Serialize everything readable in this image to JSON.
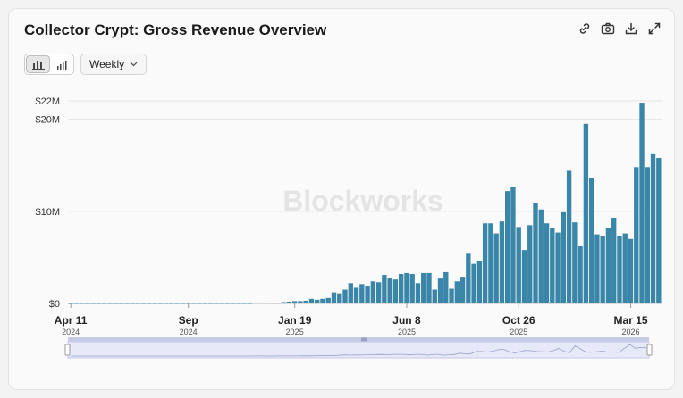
{
  "header": {
    "title": "Collector Crypt: Gross Revenue Overview"
  },
  "toolbar": {
    "icons": [
      "link-icon",
      "camera-icon",
      "download-icon",
      "expand-icon"
    ]
  },
  "controls": {
    "chart_type_buttons": [
      "bar-chart-icon",
      "bar-chart-alt-icon"
    ],
    "interval": {
      "selected": "Weekly",
      "icon": "chevron-down-icon"
    }
  },
  "watermark": "Blockworks",
  "colors": {
    "bar": "#3a86a8",
    "grid": "#e5e5e5",
    "navigator_fill": "#e6e9f8",
    "navigator_handle": "#c7cbe6"
  },
  "chart_data": {
    "type": "bar",
    "title": "Collector Crypt: Gross Revenue Overview",
    "xlabel": "",
    "ylabel": "",
    "ylim": [
      0,
      22
    ],
    "y_ticks": [
      "$0",
      "$10M",
      "$20M",
      "$22M"
    ],
    "y_tick_values": [
      0,
      10,
      20,
      22
    ],
    "x_ticks": [
      {
        "label": "Apr 11",
        "year": "2024"
      },
      {
        "label": "Sep",
        "year": "2024"
      },
      {
        "label": "Jan 19",
        "year": "2025"
      },
      {
        "label": "Jun 8",
        "year": "2025"
      },
      {
        "label": "Oct 26",
        "year": "2025"
      },
      {
        "label": "Mar 15",
        "year": "2026"
      }
    ],
    "x_tick_index": [
      0,
      21,
      40,
      60,
      80,
      100
    ],
    "series": [
      {
        "values": [
          0.01,
          0.01,
          0.01,
          0.01,
          0.01,
          0.01,
          0.01,
          0.01,
          0.01,
          0.01,
          0.01,
          0.01,
          0.01,
          0.01,
          0.01,
          0.01,
          0.01,
          0.01,
          0.01,
          0.01,
          0.01,
          0.01,
          0.01,
          0.01,
          0.01,
          0.01,
          0.01,
          0.01,
          0.01,
          0.01,
          0.01,
          0.01,
          0.01,
          0.05,
          0.1,
          0.1,
          0.05,
          0.05,
          0.15,
          0.2,
          0.25,
          0.25,
          0.3,
          0.5,
          0.4,
          0.5,
          0.6,
          1.2,
          1.1,
          1.5,
          2.2,
          1.7,
          2.1,
          1.9,
          2.4,
          2.3,
          3.1,
          2.8,
          2.6,
          3.2,
          3.3,
          3.2,
          2.2,
          3.3,
          3.3,
          1.5,
          2.7,
          3.4,
          1.6,
          2.4,
          2.9,
          5.4,
          4.3,
          4.6,
          8.7,
          8.7,
          7.6,
          8.9,
          12.2,
          12.7,
          8.3,
          5.8,
          8.5,
          10.9,
          10.2,
          8.7,
          8.2,
          7.7,
          9.9,
          14.4,
          8.8,
          6.2,
          19.5,
          13.6,
          7.5,
          7.3,
          8.2,
          9.3,
          7.3,
          7.6,
          7.0,
          14.8,
          21.8,
          14.8,
          16.2,
          15.8
        ]
      }
    ],
    "x_ticks_years_shown": true,
    "grid": true,
    "legend": "none"
  }
}
